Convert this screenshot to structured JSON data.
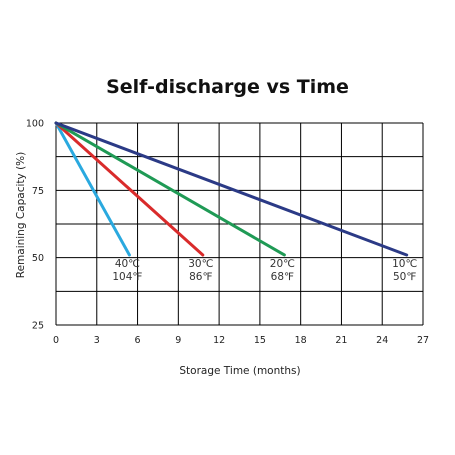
{
  "chart_data": {
    "type": "line",
    "title": "Self-discharge vs Time",
    "xlabel": "Storage Time (months)",
    "ylabel": "Remaining Capacity (%)",
    "xlim": [
      0,
      27
    ],
    "ylim": [
      25,
      100
    ],
    "xticks": [
      "0",
      "3",
      "6",
      "9",
      "12",
      "15",
      "18",
      "21",
      "24",
      "27"
    ],
    "yticks": [
      "25",
      "50",
      "75",
      "100"
    ],
    "grid": true,
    "series": [
      {
        "name": "40℃ 104℉",
        "celsius": "40℃",
        "fahrenheit": "104℉",
        "color": "#2aa9df",
        "x": [
          0,
          5.4
        ],
        "y": [
          100,
          51
        ]
      },
      {
        "name": "30℃ 86℉",
        "celsius": "30℃",
        "fahrenheit": "86℉",
        "color": "#d92b2b",
        "x": [
          0,
          10.8
        ],
        "y": [
          100,
          51
        ]
      },
      {
        "name": "20℃ 68℉",
        "celsius": "20℃",
        "fahrenheit": "68℉",
        "color": "#1f9a55",
        "x": [
          0,
          16.8
        ],
        "y": [
          100,
          51
        ]
      },
      {
        "name": "10℃ 50℉",
        "celsius": "10℃",
        "fahrenheit": "50℉",
        "color": "#2b3a86",
        "x": [
          0,
          25.8
        ],
        "y": [
          100,
          51
        ]
      }
    ]
  }
}
